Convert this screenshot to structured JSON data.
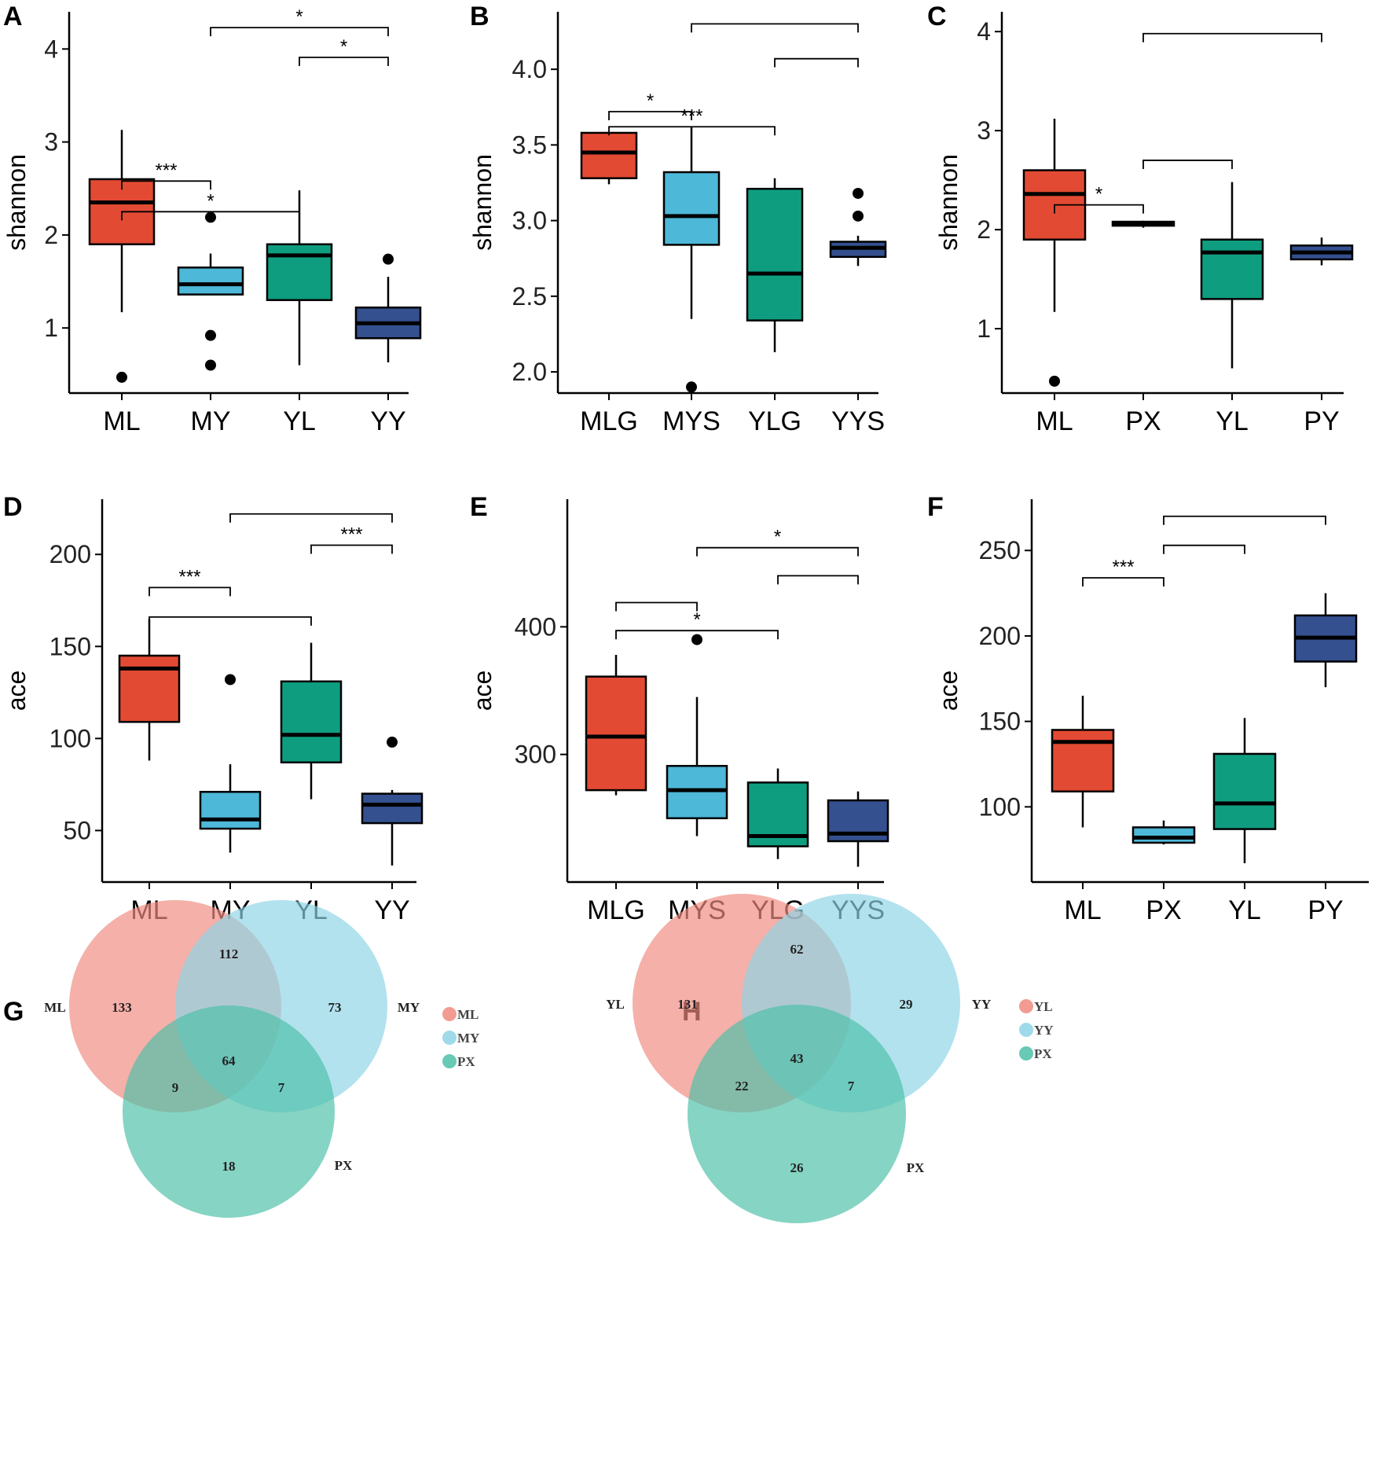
{
  "chart_data": [
    {
      "panel": "A",
      "type": "box",
      "ylabel": "shannon",
      "ylim": [
        0.3,
        4.4
      ],
      "yticks": [
        1,
        2,
        3,
        4
      ],
      "categories": [
        "ML",
        "MY",
        "YL",
        "YY"
      ],
      "boxes": [
        {
          "name": "ML",
          "color": "#e34a33",
          "q1": 1.9,
          "median": 2.35,
          "q3": 2.6,
          "lower": 1.17,
          "upper": 3.13,
          "outliers": [
            0.47
          ]
        },
        {
          "name": "MY",
          "color": "#4eb8d8",
          "q1": 1.36,
          "median": 1.47,
          "q3": 1.65,
          "lower": 1.36,
          "upper": 1.8,
          "outliers": [
            2.19,
            0.92,
            0.6
          ]
        },
        {
          "name": "YL",
          "color": "#0f9d80",
          "q1": 1.3,
          "median": 1.78,
          "q3": 1.9,
          "lower": 0.6,
          "upper": 2.48,
          "outliers": []
        },
        {
          "name": "YY",
          "color": "#34508f",
          "q1": 0.89,
          "median": 1.05,
          "q3": 1.22,
          "lower": 0.63,
          "upper": 1.55,
          "outliers": [
            1.74
          ]
        }
      ],
      "brackets": [
        {
          "from": "ML",
          "to": "MY",
          "y": 2.58,
          "label": "***"
        },
        {
          "from": "ML",
          "to": "YL",
          "y": 2.25,
          "label": "*"
        },
        {
          "from": "MY",
          "to": "YY",
          "y": 4.23,
          "label": "*"
        },
        {
          "from": "YL",
          "to": "YY",
          "y": 3.91,
          "label": "*"
        }
      ]
    },
    {
      "panel": "B",
      "type": "box",
      "ylabel": "shannon",
      "ylim": [
        1.86,
        4.38
      ],
      "yticks": [
        2.0,
        2.5,
        3.0,
        3.5,
        4.0
      ],
      "categories": [
        "MLG",
        "MYS",
        "YLG",
        "YYS"
      ],
      "boxes": [
        {
          "name": "MLG",
          "color": "#e34a33",
          "q1": 3.28,
          "median": 3.45,
          "q3": 3.58,
          "lower": 3.24,
          "upper": 3.58,
          "outliers": []
        },
        {
          "name": "MYS",
          "color": "#4eb8d8",
          "q1": 2.84,
          "median": 3.03,
          "q3": 3.32,
          "lower": 2.35,
          "upper": 3.62,
          "outliers": [
            1.9
          ]
        },
        {
          "name": "YLG",
          "color": "#0f9d80",
          "q1": 2.34,
          "median": 2.65,
          "q3": 3.21,
          "lower": 2.13,
          "upper": 3.28,
          "outliers": []
        },
        {
          "name": "YYS",
          "color": "#34508f",
          "q1": 2.76,
          "median": 2.82,
          "q3": 2.86,
          "lower": 2.7,
          "upper": 2.9,
          "outliers": [
            3.18,
            3.03
          ]
        }
      ],
      "brackets": [
        {
          "from": "MLG",
          "to": "MYS",
          "y": 3.72,
          "label": "*"
        },
        {
          "from": "MLG",
          "to": "YLG",
          "y": 3.62,
          "label": "***"
        },
        {
          "from": "MYS",
          "to": "YYS",
          "y": 4.3,
          "label": ""
        },
        {
          "from": "YLG",
          "to": "YYS",
          "y": 4.07,
          "label": ""
        }
      ]
    },
    {
      "panel": "C",
      "type": "box",
      "ylabel": "shannon",
      "ylim": [
        0.35,
        4.2
      ],
      "yticks": [
        1,
        2,
        3,
        4
      ],
      "categories": [
        "ML",
        "PX",
        "YL",
        "PY"
      ],
      "boxes": [
        {
          "name": "ML",
          "color": "#e34a33",
          "q1": 1.9,
          "median": 2.36,
          "q3": 2.6,
          "lower": 1.17,
          "upper": 3.12,
          "outliers": [
            0.47
          ]
        },
        {
          "name": "PX",
          "color": "#4eb8d8",
          "q1": 2.04,
          "median": 2.06,
          "q3": 2.08,
          "lower": 2.02,
          "upper": 2.09,
          "outliers": []
        },
        {
          "name": "YL",
          "color": "#0f9d80",
          "q1": 1.3,
          "median": 1.77,
          "q3": 1.9,
          "lower": 0.6,
          "upper": 2.48,
          "outliers": []
        },
        {
          "name": "PY",
          "color": "#34508f",
          "q1": 1.7,
          "median": 1.77,
          "q3": 1.84,
          "lower": 1.64,
          "upper": 1.92,
          "outliers": []
        }
      ],
      "brackets": [
        {
          "from": "ML",
          "to": "PX",
          "y": 2.25,
          "label": "*"
        },
        {
          "from": "PX",
          "to": "YL",
          "y": 2.7,
          "label": ""
        },
        {
          "from": "PX",
          "to": "PY",
          "y": 3.98,
          "label": ""
        }
      ]
    },
    {
      "panel": "D",
      "type": "box",
      "ylabel": "ace",
      "ylim": [
        22,
        230
      ],
      "yticks": [
        50,
        100,
        150,
        200
      ],
      "categories": [
        "ML",
        "MY",
        "YL",
        "YY"
      ],
      "boxes": [
        {
          "name": "ML",
          "color": "#e34a33",
          "q1": 109,
          "median": 138,
          "q3": 145,
          "lower": 88,
          "upper": 165,
          "outliers": []
        },
        {
          "name": "MY",
          "color": "#4eb8d8",
          "q1": 51,
          "median": 56,
          "q3": 71,
          "lower": 38,
          "upper": 86,
          "outliers": [
            132
          ]
        },
        {
          "name": "YL",
          "color": "#0f9d80",
          "q1": 87,
          "median": 102,
          "q3": 131,
          "lower": 67,
          "upper": 152,
          "outliers": []
        },
        {
          "name": "YY",
          "color": "#34508f",
          "q1": 54,
          "median": 64,
          "q3": 70,
          "lower": 31,
          "upper": 72,
          "outliers": [
            98
          ]
        }
      ],
      "brackets": [
        {
          "from": "ML",
          "to": "MY",
          "y": 182,
          "label": "***"
        },
        {
          "from": "ML",
          "to": "YL",
          "y": 166,
          "label": ""
        },
        {
          "from": "MY",
          "to": "YY",
          "y": 222,
          "label": ""
        },
        {
          "from": "YL",
          "to": "YY",
          "y": 205,
          "label": "***"
        }
      ]
    },
    {
      "panel": "E",
      "type": "box",
      "ylabel": "ace",
      "ylim": [
        200,
        500
      ],
      "yticks": [
        300,
        400
      ],
      "categories": [
        "MLG",
        "MYS",
        "YLG",
        "YYS"
      ],
      "boxes": [
        {
          "name": "MLG",
          "color": "#e34a33",
          "q1": 272,
          "median": 314,
          "q3": 361,
          "lower": 268,
          "upper": 378,
          "outliers": []
        },
        {
          "name": "MYS",
          "color": "#4eb8d8",
          "q1": 250,
          "median": 272,
          "q3": 291,
          "lower": 236,
          "upper": 345,
          "outliers": [
            390
          ]
        },
        {
          "name": "YLG",
          "color": "#0f9d80",
          "q1": 228,
          "median": 236,
          "q3": 278,
          "lower": 218,
          "upper": 289,
          "outliers": []
        },
        {
          "name": "YYS",
          "color": "#34508f",
          "q1": 232,
          "median": 238,
          "q3": 264,
          "lower": 212,
          "upper": 271,
          "outliers": []
        }
      ],
      "brackets": [
        {
          "from": "MLG",
          "to": "MYS",
          "y": 419,
          "label": ""
        },
        {
          "from": "MLG",
          "to": "YLG",
          "y": 397,
          "label": "*"
        },
        {
          "from": "MYS",
          "to": "YYS",
          "y": 462,
          "label": "*"
        },
        {
          "from": "YLG",
          "to": "YYS",
          "y": 440,
          "label": ""
        }
      ]
    },
    {
      "panel": "F",
      "type": "box",
      "ylabel": "ace",
      "ylim": [
        56,
        280
      ],
      "yticks": [
        100,
        150,
        200,
        250
      ],
      "categories": [
        "ML",
        "PX",
        "YL",
        "PY"
      ],
      "boxes": [
        {
          "name": "ML",
          "color": "#e34a33",
          "q1": 109,
          "median": 138,
          "q3": 145,
          "lower": 88,
          "upper": 165,
          "outliers": []
        },
        {
          "name": "PX",
          "color": "#4eb8d8",
          "q1": 79,
          "median": 82,
          "q3": 88,
          "lower": 78,
          "upper": 92,
          "outliers": []
        },
        {
          "name": "YL",
          "color": "#0f9d80",
          "q1": 87,
          "median": 102,
          "q3": 131,
          "lower": 67,
          "upper": 152,
          "outliers": []
        },
        {
          "name": "PY",
          "color": "#34508f",
          "q1": 185,
          "median": 199,
          "q3": 212,
          "lower": 170,
          "upper": 225,
          "outliers": []
        }
      ],
      "brackets": [
        {
          "from": "ML",
          "to": "PX",
          "y": 234,
          "label": "***"
        },
        {
          "from": "PX",
          "to": "YL",
          "y": 253,
          "label": ""
        },
        {
          "from": "PX",
          "to": "PY",
          "y": 270,
          "label": ""
        }
      ]
    },
    {
      "panel": "G",
      "type": "venn",
      "sets": [
        "ML",
        "MY",
        "PX"
      ],
      "colors": [
        "#f08a80",
        "#8dd4e6",
        "#4dbfa8"
      ],
      "regions": {
        "ML_only": 133,
        "MY_only": 73,
        "PX_only": 18,
        "ML_MY": 112,
        "ML_PX": 9,
        "MY_PX": 7,
        "all": 64
      }
    },
    {
      "panel": "H",
      "type": "venn",
      "sets": [
        "YL",
        "YY",
        "PX"
      ],
      "colors": [
        "#f08a80",
        "#8dd4e6",
        "#4dbfa8"
      ],
      "regions": {
        "YL_only": 131,
        "YY_only": 29,
        "PX_only": 26,
        "YL_YY": 62,
        "YL_PX": 22,
        "YY_PX": 7,
        "all": 43
      }
    }
  ]
}
